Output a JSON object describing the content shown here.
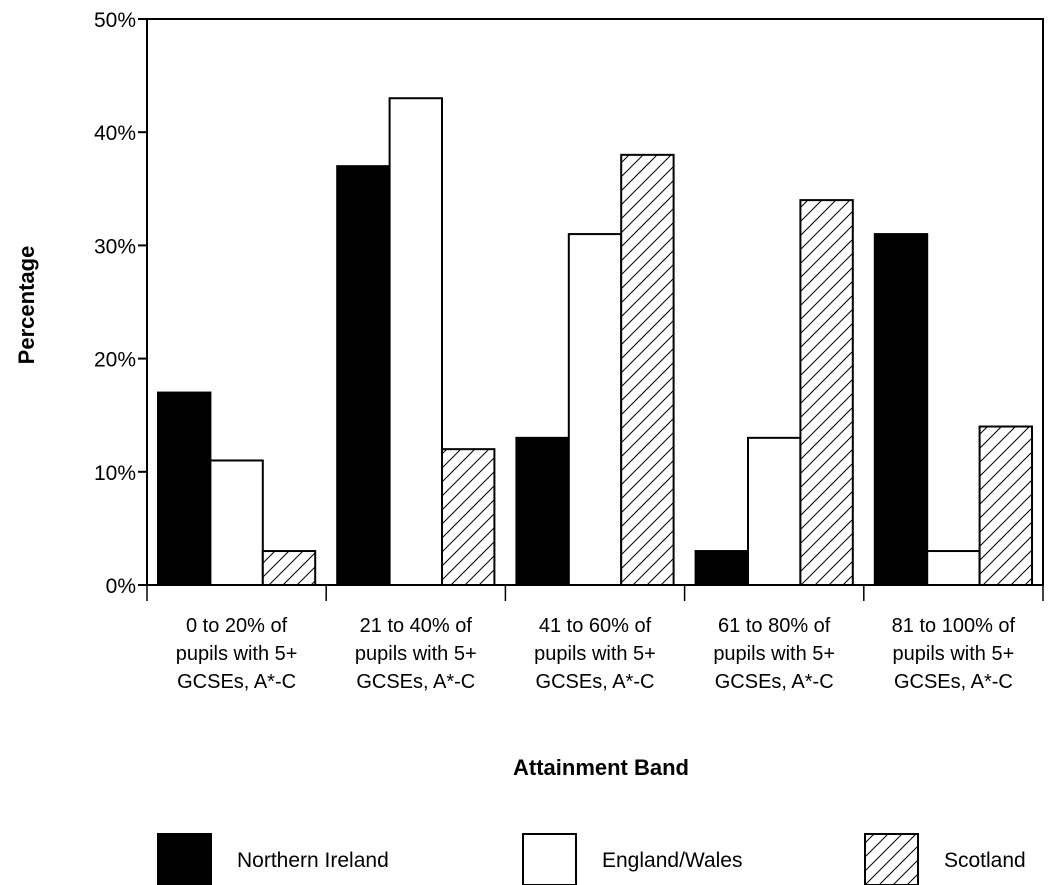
{
  "chart_data": {
    "type": "bar",
    "title": "",
    "xlabel": "Attainment Band",
    "ylabel": "Percentage",
    "ylim": [
      0,
      50
    ],
    "yticks": [
      "0%",
      "10%",
      "20%",
      "30%",
      "40%",
      "50%"
    ],
    "grid": false,
    "legend_position": "bottom",
    "categories": [
      [
        "0 to 20% of",
        "pupils with 5+",
        "GCSEs, A*-C"
      ],
      [
        "21 to 40% of",
        "pupils with 5+",
        "GCSEs, A*-C"
      ],
      [
        "41 to 60% of",
        "pupils with 5+",
        "GCSEs, A*-C"
      ],
      [
        "61 to 80% of",
        "pupils with 5+",
        "GCSEs, A*-C"
      ],
      [
        "81 to 100% of",
        "pupils with 5+",
        "GCSEs, A*-C"
      ]
    ],
    "series": [
      {
        "name": "Northern Ireland",
        "style": "solid",
        "color": "#000000",
        "values": [
          17,
          37,
          13,
          3,
          31
        ]
      },
      {
        "name": "England/Wales",
        "style": "hollow",
        "color": "#ffffff",
        "values": [
          11,
          43,
          31,
          13,
          3
        ]
      },
      {
        "name": "Scotland",
        "style": "hatched",
        "color": "#ffffff",
        "values": [
          3,
          12,
          38,
          34,
          14
        ]
      }
    ]
  }
}
